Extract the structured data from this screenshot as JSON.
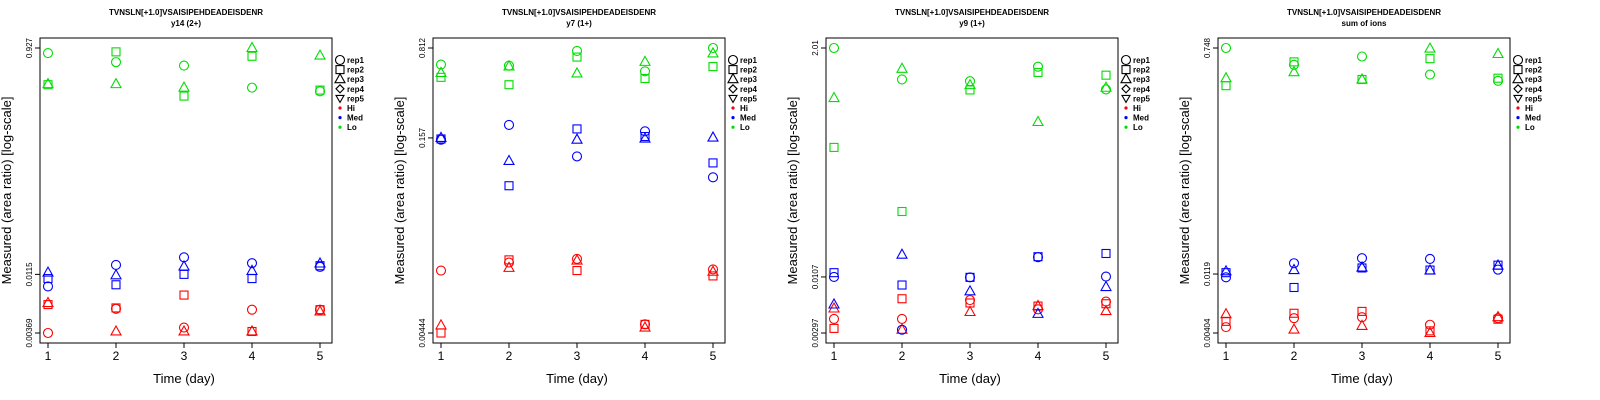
{
  "figure": {
    "title_line1": "TVNSLN[+1.0]VSAISIPEHDEADEISDENR",
    "colors": {
      "Hi": "#ff0000",
      "Med": "#0000ff",
      "Lo": "#00dd00"
    }
  },
  "chart_data": [
    {
      "type": "scatter",
      "title": "TVNSLN[+1.0]VSAISIPEHDEADEISDENR",
      "subtitle": "y14 (2+)",
      "xlabel": "Time (day)",
      "ylabel": "Measured (area ratio) [log-scale]",
      "log_y": true,
      "grid": false,
      "legend_position": "right",
      "x_ticks": [
        "1",
        "2",
        "3",
        "4",
        "5"
      ],
      "y_ticks": [
        "0.00369",
        "0.0115",
        "0.927"
      ],
      "ylim": [
        0.00369,
        0.927
      ],
      "legend": [
        "rep1",
        "rep2",
        "rep3",
        "rep4",
        "rep5",
        "Hi",
        "Med",
        "Lo"
      ],
      "series": [
        {
          "name": "rep1",
          "marker": "circle",
          "group": "Hi",
          "values": [
            0.00369,
            0.0059,
            0.0041,
            0.0058,
            0.0058
          ]
        },
        {
          "name": "rep2",
          "marker": "square",
          "group": "Hi",
          "values": [
            0.0064,
            0.006,
            0.0077,
            0.0038,
            0.0058
          ]
        },
        {
          "name": "rep3",
          "marker": "triangle",
          "group": "Hi",
          "values": [
            0.0066,
            0.0038,
            0.0038,
            0.0038,
            0.0056
          ]
        },
        {
          "name": "rep1",
          "marker": "circle",
          "group": "Med",
          "values": [
            0.0091,
            0.0138,
            0.016,
            0.0143,
            0.0133
          ]
        },
        {
          "name": "rep2",
          "marker": "square",
          "group": "Med",
          "values": [
            0.0106,
            0.0094,
            0.0115,
            0.0106,
            0.0136
          ]
        },
        {
          "name": "rep3",
          "marker": "triangle",
          "group": "Med",
          "values": [
            0.0119,
            0.0113,
            0.0134,
            0.0123,
            0.0142
          ]
        },
        {
          "name": "rep1",
          "marker": "circle",
          "group": "Lo",
          "values": [
            0.84,
            0.705,
            0.66,
            0.43,
            0.4
          ]
        },
        {
          "name": "rep2",
          "marker": "square",
          "group": "Lo",
          "values": [
            0.455,
            0.86,
            0.365,
            0.79,
            0.41
          ]
        },
        {
          "name": "rep3",
          "marker": "triangle",
          "group": "Lo",
          "values": [
            0.46,
            0.46,
            0.43,
            0.927,
            0.8
          ]
        }
      ]
    },
    {
      "type": "scatter",
      "title": "TVNSLN[+1.0]VSAISIPEHDEADEISDENR",
      "subtitle": "y7 (1+)",
      "xlabel": "Time (day)",
      "ylabel": "Measured (area ratio) [log-scale]",
      "log_y": true,
      "grid": false,
      "legend_position": "right",
      "x_ticks": [
        "1",
        "2",
        "3",
        "4",
        "5"
      ],
      "y_ticks": [
        "0.00444",
        "0.157",
        "0.812"
      ],
      "ylim": [
        0.00444,
        0.812
      ],
      "legend": [
        "rep1",
        "rep2",
        "rep3",
        "rep4",
        "rep5",
        "Hi",
        "Med",
        "Lo"
      ],
      "series": [
        {
          "name": "rep1",
          "marker": "circle",
          "group": "Hi",
          "values": [
            0.0139,
            0.0161,
            0.0172,
            0.0052,
            0.0142
          ]
        },
        {
          "name": "rep2",
          "marker": "square",
          "group": "Hi",
          "values": [
            0.00444,
            0.0169,
            0.0139,
            0.0052,
            0.0126
          ]
        },
        {
          "name": "rep3",
          "marker": "triangle",
          "group": "Hi",
          "values": [
            0.0051,
            0.0146,
            0.0167,
            0.0049,
            0.0136
          ]
        },
        {
          "name": "rep1",
          "marker": "circle",
          "group": "Med",
          "values": [
            0.152,
            0.199,
            0.112,
            0.177,
            0.0764
          ]
        },
        {
          "name": "rep2",
          "marker": "square",
          "group": "Med",
          "values": [
            0.154,
            0.0655,
            0.185,
            0.161,
            0.0994
          ]
        },
        {
          "name": "rep3",
          "marker": "triangle",
          "group": "Med",
          "values": [
            0.157,
            0.103,
            0.152,
            0.155,
            0.158
          ]
        },
        {
          "name": "rep1",
          "marker": "circle",
          "group": "Lo",
          "values": [
            0.6,
            0.588,
            0.77,
            0.53,
            0.812
          ]
        },
        {
          "name": "rep2",
          "marker": "square",
          "group": "Lo",
          "values": [
            0.475,
            0.415,
            0.688,
            0.465,
            0.578
          ]
        },
        {
          "name": "rep3",
          "marker": "triangle",
          "group": "Lo",
          "values": [
            0.515,
            0.58,
            0.51,
            0.63,
            0.735
          ]
        }
      ]
    },
    {
      "type": "scatter",
      "title": "TVNSLN[+1.0]VSAISIPEHDEADEISDENR",
      "subtitle": "y9 (1+)",
      "xlabel": "Time (day)",
      "ylabel": "Measured (area ratio) [log-scale]",
      "log_y": true,
      "grid": false,
      "legend_position": "right",
      "x_ticks": [
        "1",
        "2",
        "3",
        "4",
        "5"
      ],
      "y_ticks": [
        "0.00297",
        "0.0107",
        "2.01"
      ],
      "ylim": [
        0.00297,
        2.01
      ],
      "legend": [
        "rep1",
        "rep2",
        "rep3",
        "rep4",
        "rep5",
        "Hi",
        "Med",
        "Lo"
      ],
      "series": [
        {
          "name": "rep1",
          "marker": "circle",
          "group": "Hi",
          "values": [
            0.0041,
            0.0041,
            0.0063,
            0.0051,
            0.0061
          ]
        },
        {
          "name": "rep2",
          "marker": "square",
          "group": "Hi",
          "values": [
            0.0033,
            0.0065,
            0.0059,
            0.0055,
            0.0058
          ]
        },
        {
          "name": "rep3",
          "marker": "triangle",
          "group": "Hi",
          "values": [
            0.0052,
            0.0032,
            0.0048,
            0.0055,
            0.0049
          ]
        },
        {
          "name": "rep1",
          "marker": "circle",
          "group": "Med",
          "values": [
            0.0107,
            0.0032,
            0.0106,
            0.0168,
            0.0108
          ]
        },
        {
          "name": "rep2",
          "marker": "square",
          "group": "Med",
          "values": [
            0.0118,
            0.0089,
            0.0106,
            0.017,
            0.0183
          ]
        },
        {
          "name": "rep3",
          "marker": "triangle",
          "group": "Med",
          "values": [
            0.0057,
            0.0178,
            0.0077,
            0.0046,
            0.0085
          ]
        },
        {
          "name": "rep1",
          "marker": "circle",
          "group": "Lo",
          "values": [
            2.01,
            0.98,
            0.94,
            1.31,
            0.78
          ]
        },
        {
          "name": "rep2",
          "marker": "square",
          "group": "Lo",
          "values": [
            0.207,
            0.0478,
            0.77,
            1.15,
            1.08
          ]
        },
        {
          "name": "rep3",
          "marker": "triangle",
          "group": "Lo",
          "values": [
            0.64,
            1.25,
            0.86,
            0.37,
            0.81
          ]
        }
      ]
    },
    {
      "type": "scatter",
      "title": "TVNSLN[+1.0]VSAISIPEHDEADEISDENR",
      "subtitle": "sum of ions",
      "xlabel": "Time (day)",
      "ylabel": "Measured (area ratio) [log-scale]",
      "log_y": true,
      "grid": false,
      "legend_position": "right",
      "x_ticks": [
        "1",
        "2",
        "3",
        "4",
        "5"
      ],
      "y_ticks": [
        "0.00404",
        "0.0119",
        "0.748"
      ],
      "ylim": [
        0.00404,
        0.748
      ],
      "legend": [
        "rep1",
        "rep2",
        "rep3",
        "rep4",
        "rep5",
        "Hi",
        "Med",
        "Lo"
      ],
      "series": [
        {
          "name": "rep1",
          "marker": "circle",
          "group": "Hi",
          "values": [
            0.0045,
            0.0053,
            0.0054,
            0.0047,
            0.0053
          ]
        },
        {
          "name": "rep2",
          "marker": "square",
          "group": "Hi",
          "values": [
            0.005,
            0.0058,
            0.006,
            0.0042,
            0.0052
          ]
        },
        {
          "name": "rep3",
          "marker": "triangle",
          "group": "Hi",
          "values": [
            0.0057,
            0.0043,
            0.0046,
            0.00404,
            0.0054
          ]
        },
        {
          "name": "rep1",
          "marker": "circle",
          "group": "Med",
          "values": [
            0.0112,
            0.0145,
            0.0159,
            0.0157,
            0.0129
          ]
        },
        {
          "name": "rep2",
          "marker": "square",
          "group": "Med",
          "values": [
            0.0122,
            0.0093,
            0.0133,
            0.0128,
            0.014
          ]
        },
        {
          "name": "rep3",
          "marker": "triangle",
          "group": "Med",
          "values": [
            0.0125,
            0.0128,
            0.0134,
            0.0127,
            0.0139
          ]
        },
        {
          "name": "rep1",
          "marker": "circle",
          "group": "Lo",
          "values": [
            0.748,
            0.55,
            0.64,
            0.46,
            0.41
          ]
        },
        {
          "name": "rep2",
          "marker": "square",
          "group": "Lo",
          "values": [
            0.375,
            0.58,
            0.42,
            0.615,
            0.43
          ]
        },
        {
          "name": "rep3",
          "marker": "triangle",
          "group": "Lo",
          "values": [
            0.43,
            0.48,
            0.42,
            0.74,
            0.67
          ]
        }
      ]
    }
  ]
}
